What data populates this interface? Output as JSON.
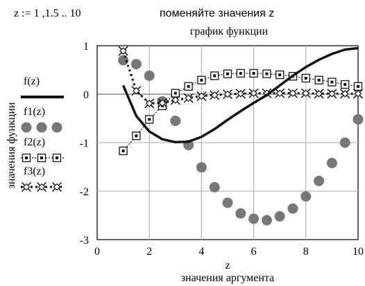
{
  "header": {
    "range_expr": "z := 1 ,1.5 .. 10",
    "instruction": "поменяйте значения z"
  },
  "chart_data": {
    "type": "line",
    "title": "график функции",
    "xlabel_var": "z",
    "xlabel": "значения аргумента",
    "ylabel": "значения функции",
    "xlim": [
      0,
      10
    ],
    "ylim": [
      -3,
      1
    ],
    "x_ticks": [
      "0",
      "2",
      "4",
      "6",
      "8",
      "10"
    ],
    "y_ticks": [
      "1",
      "0",
      "-1",
      "-2",
      "-3"
    ],
    "grid": true,
    "legend_position": "left",
    "x": [
      1,
      1.5,
      2,
      2.5,
      3,
      3.5,
      4,
      4.5,
      5,
      5.5,
      6,
      6.5,
      7,
      7.5,
      8,
      8.5,
      9,
      9.5,
      10
    ],
    "series": [
      {
        "name": "f(z)",
        "style": "thick-solid-line",
        "color": "#111111",
        "values": [
          0.18,
          -0.45,
          -0.77,
          -0.93,
          -0.99,
          -0.98,
          -0.88,
          -0.72,
          -0.53,
          -0.35,
          -0.18,
          -0.02,
          0.18,
          0.38,
          0.56,
          0.71,
          0.83,
          0.92,
          0.95
        ]
      },
      {
        "name": "f1(z)",
        "style": "large-gray-dots",
        "color": "#777777",
        "values": [
          0.7,
          0.62,
          0.38,
          -0.15,
          -0.55,
          -1.05,
          -1.51,
          -1.92,
          -2.24,
          -2.46,
          -2.57,
          -2.6,
          -2.52,
          -2.36,
          -2.11,
          -1.79,
          -1.42,
          -1.0,
          -0.52
        ]
      },
      {
        "name": "f2(z)",
        "style": "dotted-line-open-squares",
        "color": "#111111",
        "values": [
          -1.17,
          -0.86,
          -0.52,
          -0.24,
          0.02,
          0.16,
          0.29,
          0.38,
          0.42,
          0.43,
          0.43,
          0.42,
          0.4,
          0.37,
          0.33,
          0.29,
          0.25,
          0.2,
          0.16
        ]
      },
      {
        "name": "f3(z)",
        "style": "dash-dot-line-x-diamond",
        "color": "#111111",
        "values": [
          0.89,
          0.07,
          -0.19,
          -0.18,
          -0.12,
          -0.08,
          -0.04,
          -0.02,
          0.0,
          0.01,
          0.02,
          0.02,
          0.02,
          0.02,
          0.02,
          0.01,
          0.01,
          0.01,
          0.01
        ]
      }
    ]
  }
}
